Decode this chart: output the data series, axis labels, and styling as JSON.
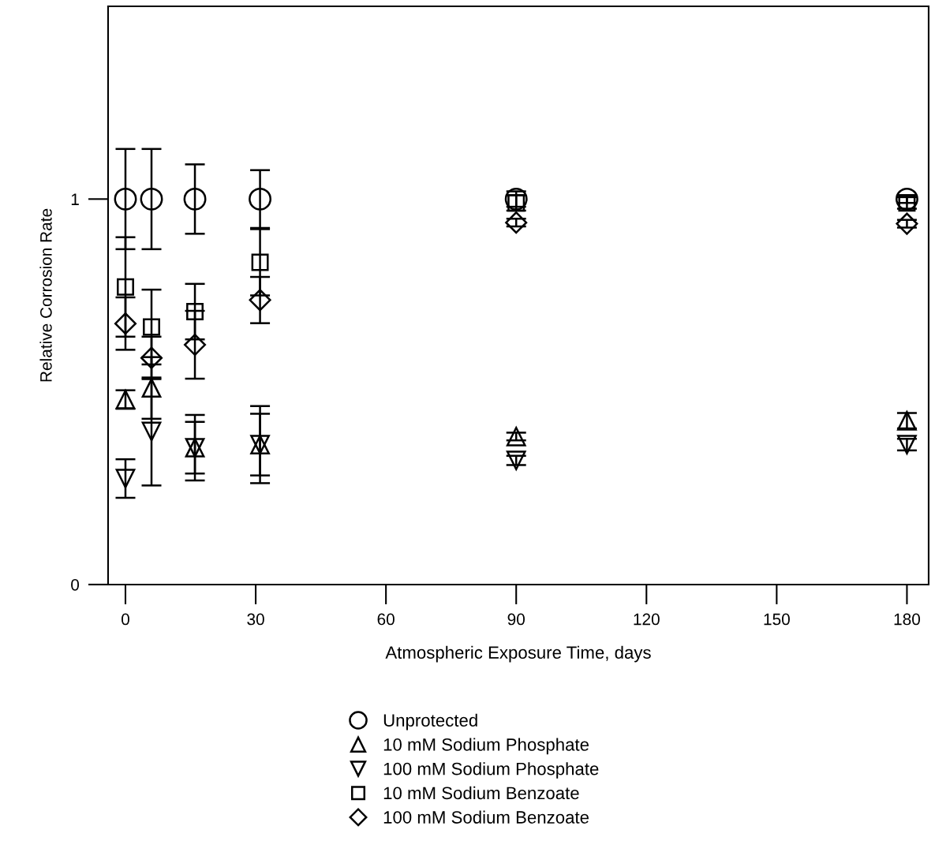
{
  "chart_data": {
    "type": "scatter",
    "xlabel": "Atmospheric Exposure Time, days",
    "ylabel": "Relative Corrosion Rate",
    "xlim": [
      -4,
      185
    ],
    "ylim": [
      0,
      1.5
    ],
    "xticks": [
      0,
      30,
      60,
      90,
      120,
      150,
      180
    ],
    "yticks": [
      0,
      1
    ],
    "grid": false,
    "legend": "bottom",
    "series": [
      {
        "name": "Unprotected",
        "color": "#000000",
        "marker": "circle",
        "x": [
          0,
          6,
          16,
          31,
          90,
          180
        ],
        "values": [
          1,
          1,
          1,
          1,
          1,
          1
        ],
        "errors": [
          0.13,
          0.13,
          0.09,
          0.075,
          0.02,
          0.01
        ]
      },
      {
        "name": "10 mM Sodium Phosphate",
        "color": "#000000",
        "marker": "triangle",
        "x": [
          0,
          6,
          16,
          31,
          90,
          180
        ],
        "values": [
          0.48,
          0.51,
          0.355,
          0.363,
          0.384,
          0.425
        ],
        "errors": [
          0.024,
          0.08,
          0.067,
          0.08,
          0.01,
          0.02
        ]
      },
      {
        "name": "100 mM Sodium Phosphate",
        "color": "#000000",
        "marker": "triangle_down",
        "x": [
          0,
          6,
          16,
          31,
          90,
          180
        ],
        "values": [
          0.275,
          0.397,
          0.355,
          0.363,
          0.322,
          0.363
        ],
        "errors": [
          0.05,
          0.14,
          0.085,
          0.1,
          0.012,
          0.015
        ]
      },
      {
        "name": "10 mM Sodium Benzoate",
        "color": "#000000",
        "marker": "square",
        "x": [
          0,
          6,
          16,
          31,
          90,
          180
        ],
        "values": [
          0.772,
          0.668,
          0.708,
          0.836,
          0.99,
          0.99
        ],
        "errors": [
          0.129,
          0.097,
          0.072,
          0.086,
          0.02,
          0.015
        ]
      },
      {
        "name": "100 mM Sodium Benzoate",
        "color": "#000000",
        "marker": "diamond",
        "x": [
          0,
          6,
          16,
          31,
          90,
          180
        ],
        "values": [
          0.677,
          0.588,
          0.622,
          0.738,
          0.939,
          0.936
        ],
        "errors": [
          0.068,
          0.055,
          0.088,
          0.06,
          0.01,
          0.01
        ]
      }
    ]
  }
}
